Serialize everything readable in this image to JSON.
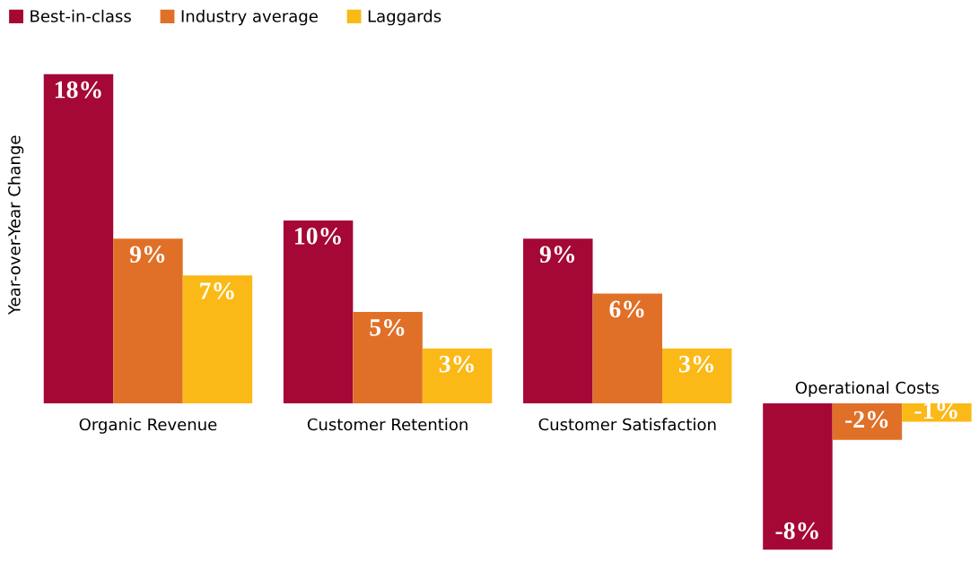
{
  "chart_data": {
    "type": "bar",
    "ylabel": "Year-over-Year Change",
    "categories": [
      "Organic Revenue",
      "Customer Retention",
      "Customer Satisfaction",
      "Operational Costs"
    ],
    "series": [
      {
        "name": "Best-in-class",
        "color": "#a50834",
        "values": [
          18,
          10,
          9,
          -8
        ],
        "value_labels": [
          "18%",
          "10%",
          "9%",
          "-8%"
        ]
      },
      {
        "name": "Industry average",
        "color": "#e07028",
        "values": [
          9,
          5,
          6,
          -2
        ],
        "value_labels": [
          "9%",
          "5%",
          "6%",
          "-2%"
        ]
      },
      {
        "name": "Laggards",
        "color": "#fbb917",
        "values": [
          7,
          3,
          3,
          -1
        ],
        "value_labels": [
          "7%",
          "3%",
          "3%",
          "-1%"
        ]
      }
    ],
    "legend": "top left"
  }
}
